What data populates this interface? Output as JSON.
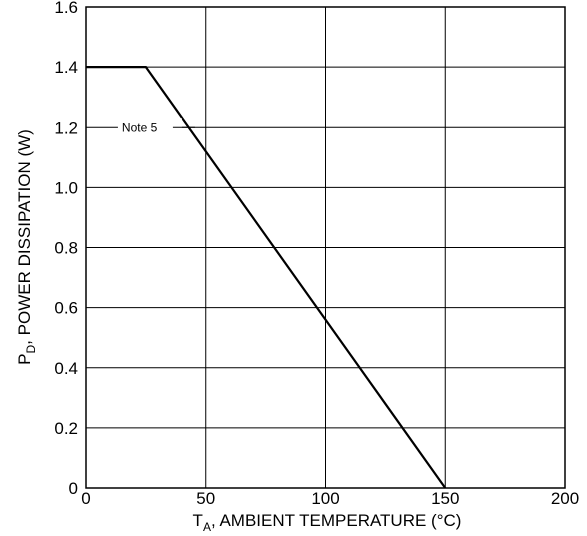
{
  "chart_data": {
    "type": "line",
    "title": "",
    "xlabel": {
      "main": "T",
      "sub": "A",
      "rest": ", AMBIENT TEMPERATURE  (°C)"
    },
    "ylabel": {
      "main": "P",
      "sub": "D",
      "rest": ", POWER DISSIPATION (W)"
    },
    "xlim": [
      0,
      200
    ],
    "ylim": [
      0,
      1.6
    ],
    "xticks": [
      0,
      50,
      100,
      150,
      200
    ],
    "xtick_labels": [
      "0",
      "50",
      "100",
      "150",
      "200"
    ],
    "yticks": [
      0,
      0.2,
      0.4,
      0.6,
      0.8,
      1.0,
      1.2,
      1.4,
      1.6
    ],
    "ytick_labels": [
      "0",
      "0.2",
      "0.4",
      "0.6",
      "0.8",
      "1.0",
      "1.2",
      "1.4",
      "1.6"
    ],
    "grid": true,
    "series": [
      {
        "x": [
          0,
          25,
          150
        ],
        "y": [
          1.4,
          1.4,
          0
        ]
      }
    ],
    "annotations": [
      {
        "text": "Note 5",
        "x": 15,
        "y": 1.2
      }
    ]
  }
}
